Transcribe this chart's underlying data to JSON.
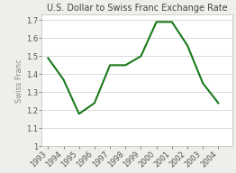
{
  "title": "U.S. Dollar to Swiss Franc Exchange Rate",
  "ylabel": "Swiss Franc",
  "years": [
    1993,
    1994,
    1995,
    1996,
    1997,
    1998,
    1999,
    2000,
    2001,
    2002,
    2003,
    2004
  ],
  "values": [
    1.49,
    1.37,
    1.18,
    1.24,
    1.45,
    1.45,
    1.5,
    1.69,
    1.69,
    1.56,
    1.35,
    1.24
  ],
  "line_color": "#1a7a1a",
  "linewidth": 1.5,
  "ylim": [
    1.0,
    1.73
  ],
  "yticks": [
    1.0,
    1.1,
    1.2,
    1.3,
    1.4,
    1.5,
    1.6,
    1.7
  ],
  "ytick_labels": [
    "1",
    "1.1",
    "1.2",
    "1.3",
    "1.4",
    "1.5",
    "1.6",
    "1.7"
  ],
  "background_color": "#eeeeea",
  "plot_bg_color": "#ffffff",
  "title_fontsize": 7,
  "axis_fontsize": 6,
  "tick_fontsize": 6
}
